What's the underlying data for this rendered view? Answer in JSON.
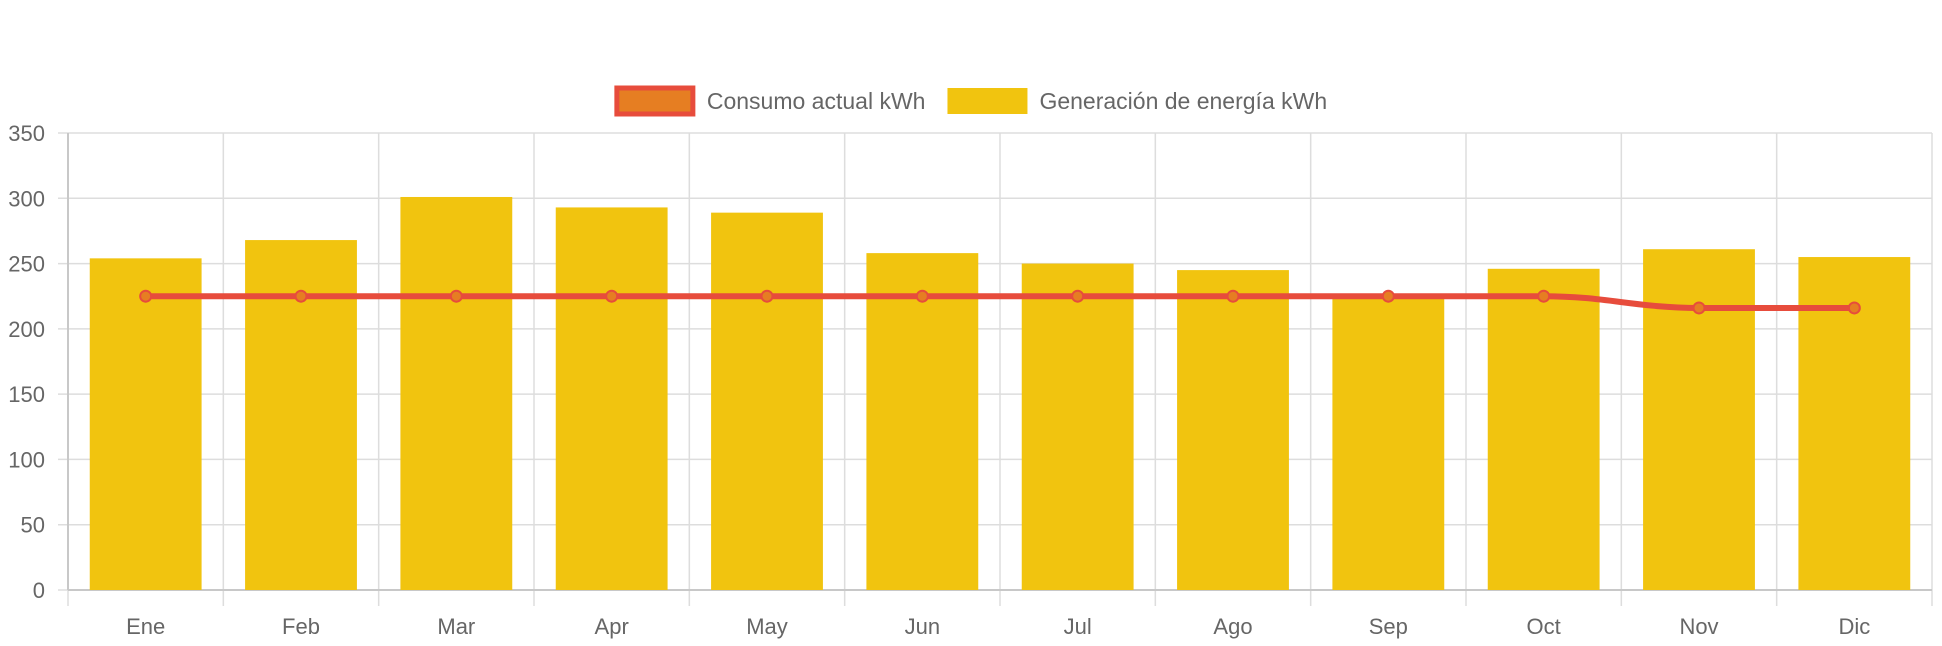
{
  "chart_data": {
    "type": "bar",
    "categories": [
      "Ene",
      "Feb",
      "Mar",
      "Apr",
      "May",
      "Jun",
      "Jul",
      "Ago",
      "Sep",
      "Oct",
      "Nov",
      "Dic"
    ],
    "series": [
      {
        "name": "Consumo actual kWh",
        "type": "line",
        "color": "#e74c3c",
        "point_fill": "#e67e22",
        "values": [
          225,
          225,
          225,
          225,
          225,
          225,
          225,
          225,
          225,
          225,
          216,
          216
        ]
      },
      {
        "name": "Generación de energía kWh",
        "type": "bar",
        "color": "#f1c40f",
        "values": [
          254,
          268,
          301,
          293,
          289,
          258,
          250,
          245,
          225,
          246,
          261,
          255
        ]
      }
    ],
    "ylim": [
      0,
      350
    ],
    "yticks": [
      0,
      50,
      100,
      150,
      200,
      250,
      300,
      350
    ],
    "grid": true,
    "legend_position": "top-center"
  }
}
